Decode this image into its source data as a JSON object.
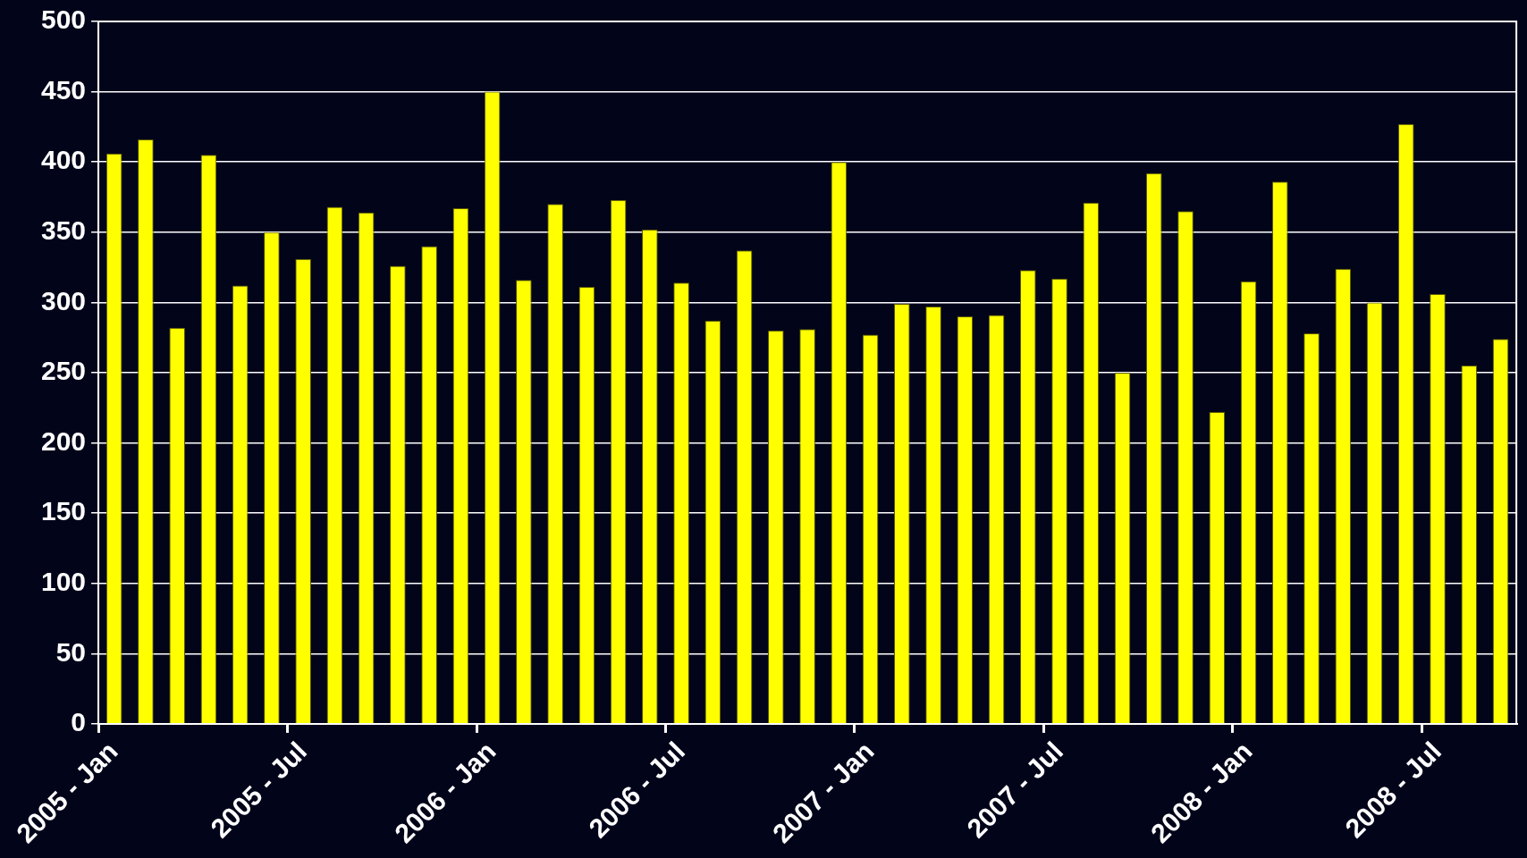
{
  "chart_data": {
    "type": "bar",
    "categories": [
      "2005 - Jan",
      null,
      null,
      null,
      null,
      null,
      "2005 - Jul",
      null,
      null,
      null,
      null,
      null,
      "2006 - Jan",
      null,
      null,
      null,
      null,
      null,
      "2006 - Jul",
      null,
      null,
      null,
      null,
      null,
      "2007 - Jan",
      null,
      null,
      null,
      null,
      null,
      "2007 - Jul",
      null,
      null,
      null,
      null,
      null,
      "2008 - Jan",
      null,
      null,
      null,
      null,
      null,
      "2008 - Jul",
      null,
      null
    ],
    "values": [
      406,
      416,
      282,
      405,
      312,
      350,
      331,
      368,
      364,
      326,
      340,
      367,
      450,
      316,
      370,
      311,
      373,
      352,
      314,
      287,
      337,
      280,
      281,
      400,
      277,
      299,
      297,
      290,
      291,
      323,
      317,
      371,
      250,
      392,
      365,
      222,
      315,
      386,
      278,
      324,
      300,
      427,
      306,
      255,
      274
    ],
    "color": "#ffff00",
    "ylim": [
      0,
      500
    ],
    "yticks": [
      0,
      50,
      100,
      150,
      200,
      250,
      300,
      350,
      400,
      450,
      500
    ],
    "grid": "y"
  }
}
